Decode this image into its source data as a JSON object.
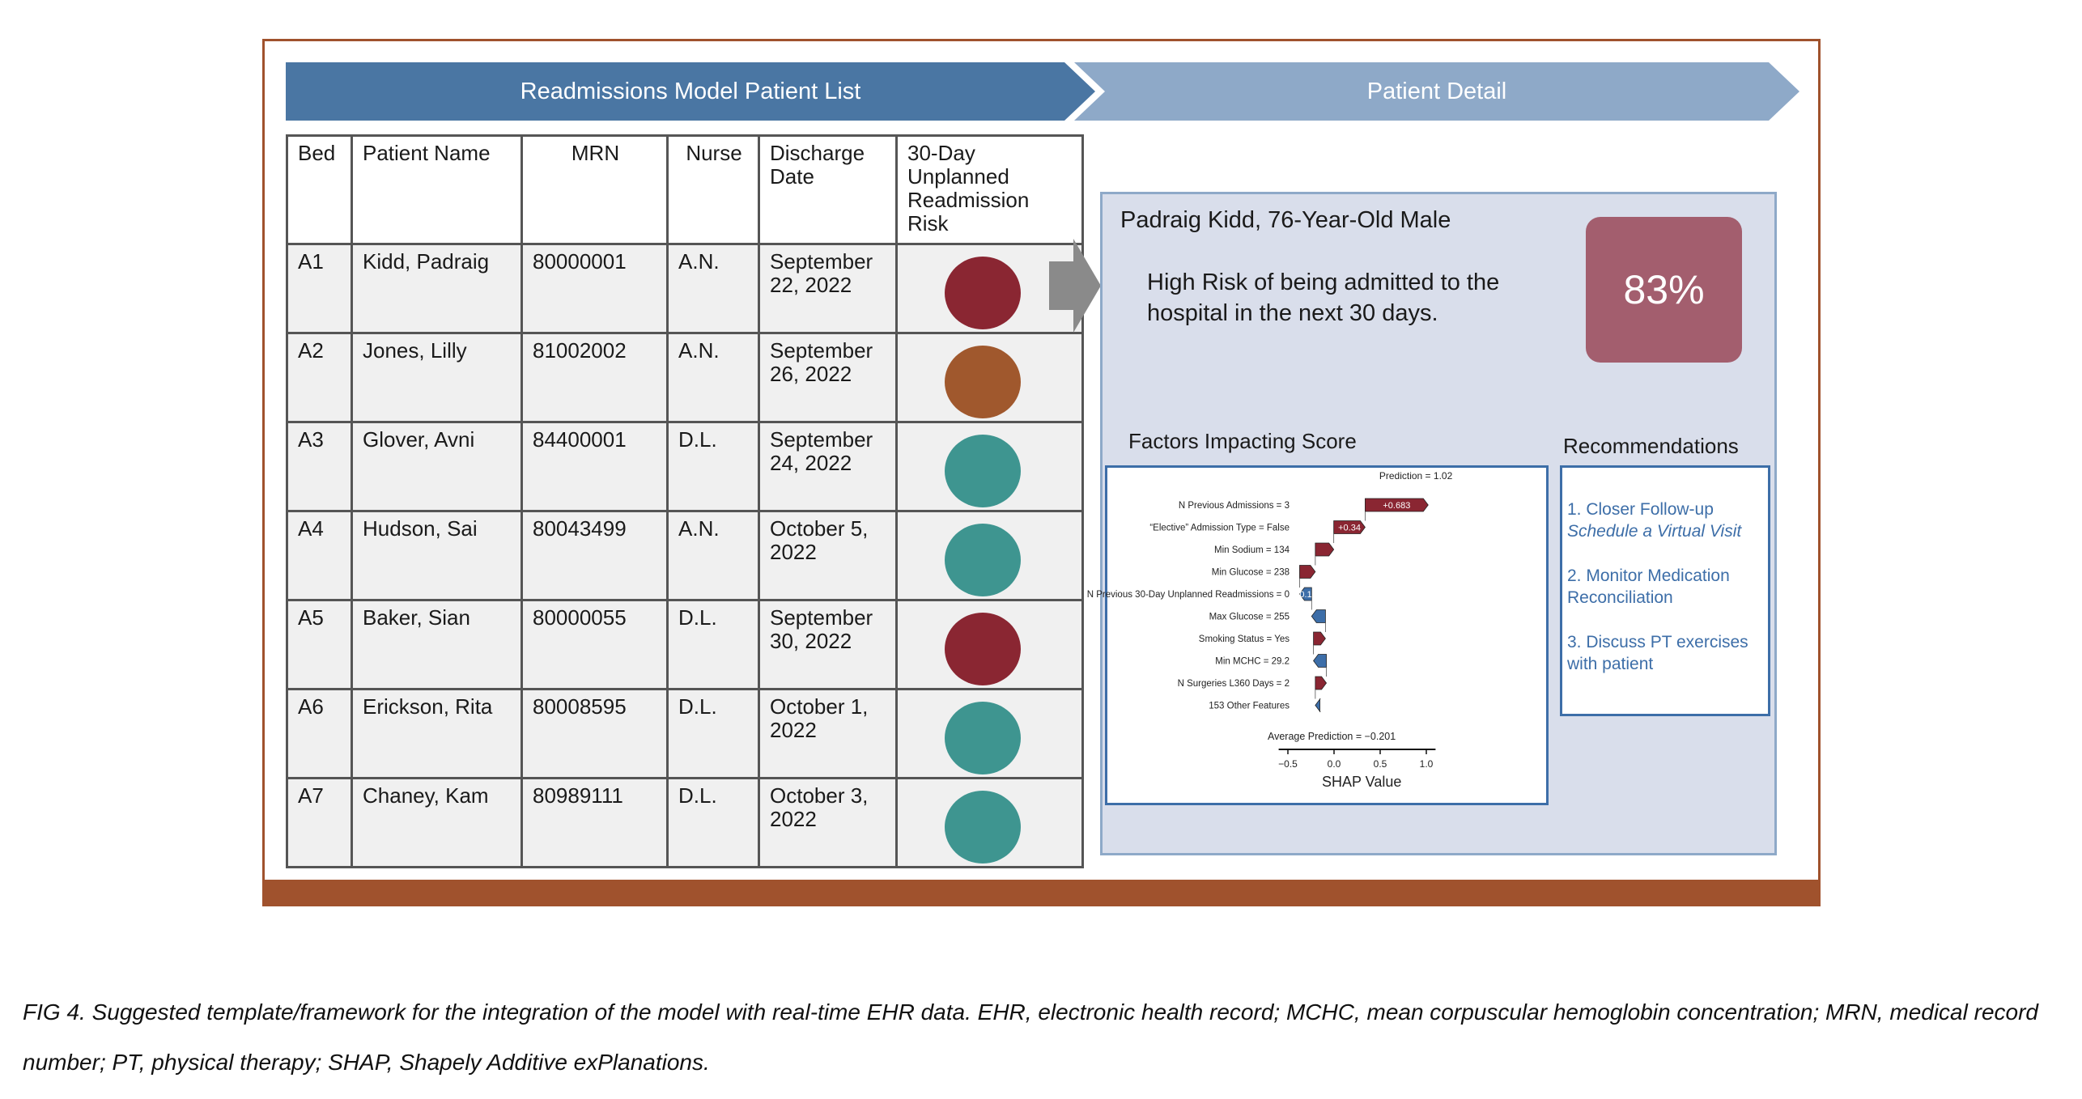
{
  "banner": {
    "left": "Readmissions Model Patient List",
    "right": "Patient Detail"
  },
  "table": {
    "headers": [
      "Bed",
      "Patient Name",
      "MRN",
      "Nurse",
      "Discharge Date",
      "30-Day Unplanned Readmission Risk"
    ],
    "rows": [
      {
        "bed": "A1",
        "name": "Kidd, Padraig",
        "mrn": "80000001",
        "nurse": "A.N.",
        "date": "September 22, 2022",
        "risk_color": "#8a2632"
      },
      {
        "bed": "A2",
        "name": "Jones, Lilly",
        "mrn": "81002002",
        "nurse": "A.N.",
        "date": "September 26, 2022",
        "risk_color": "#a0582d"
      },
      {
        "bed": "A3",
        "name": "Glover, Avni",
        "mrn": "84400001",
        "nurse": "D.L.",
        "date": "September 24, 2022",
        "risk_color": "#3e9590"
      },
      {
        "bed": "A4",
        "name": "Hudson, Sai",
        "mrn": "80043499",
        "nurse": "A.N.",
        "date": "October 5, 2022",
        "risk_color": "#3e9590"
      },
      {
        "bed": "A5",
        "name": "Baker, Sian",
        "mrn": "80000055",
        "nurse": "D.L.",
        "date": "September 30, 2022",
        "risk_color": "#8a2632"
      },
      {
        "bed": "A6",
        "name": "Erickson, Rita",
        "mrn": "80008595",
        "nurse": "D.L.",
        "date": "October 1, 2022",
        "risk_color": "#3e9590"
      },
      {
        "bed": "A7",
        "name": "Chaney, Kam",
        "mrn": "80989111",
        "nurse": "D.L.",
        "date": "October 3, 2022",
        "risk_color": "#3e9590"
      }
    ]
  },
  "detail": {
    "patient": "Padraig Kidd, 76-Year-Old Male",
    "risk_statement": "High Risk of being admitted to the hospital in the next 30 days.",
    "score": "83%",
    "factors_title": "Factors Impacting Score",
    "recommendations_title": "Recommendations",
    "recommendations": [
      {
        "title": "1. Closer Follow-up",
        "sub": "Schedule a Virtual Visit"
      },
      {
        "title": "2. Monitor Medication Reconciliation",
        "sub": ""
      },
      {
        "title": "3. Discuss PT exercises with patient",
        "sub": ""
      }
    ]
  },
  "chart_data": {
    "type": "waterfall",
    "xlabel": "SHAP Value",
    "xlim": [
      -0.6,
      1.1
    ],
    "ticks": [
      -0.5,
      0.0,
      0.5,
      1.0
    ],
    "tick_labels": [
      "−0.5",
      "0.0",
      "0.5",
      "1.0"
    ],
    "base_label": "Average Prediction = −0.201",
    "base_value": -0.201,
    "prediction_label": "Prediction = 1.02",
    "prediction_value": 1.02,
    "positive_color": "#8a2632",
    "negative_color": "#3d6ea8",
    "features": [
      {
        "label": "N Previous Admissions = 3",
        "value": 0.683,
        "value_label": "+0.683"
      },
      {
        "label": "“Elective” Admission Type = False",
        "value": 0.34,
        "value_label": "+0.34"
      },
      {
        "label": "Min Sodium = 134",
        "value": 0.2,
        "value_label": ""
      },
      {
        "label": "Min Glucose = 238",
        "value": 0.17,
        "value_label": ""
      },
      {
        "label": "N Previous 30-Day Unplanned Readmissions = 0",
        "value": -0.13,
        "value_label": "−0.13"
      },
      {
        "label": "Max Glucose = 255",
        "value": -0.15,
        "value_label": ""
      },
      {
        "label": "Smoking Status = Yes",
        "value": 0.13,
        "value_label": ""
      },
      {
        "label": "Min MCHC = 29.2",
        "value": -0.14,
        "value_label": ""
      },
      {
        "label": "N Surgeries L360 Days = 2",
        "value": 0.12,
        "value_label": ""
      },
      {
        "label": "153 Other Features",
        "value": -0.05,
        "value_label": ""
      }
    ]
  },
  "caption": "FIG 4. Suggested template/framework for the integration of the model with real-time EHR data. EHR, electronic health record; MCHC, mean corpuscular hemoglobin concentration; MRN, medical record number; PT, physical therapy; SHAP, Shapely Additive exPlanations."
}
